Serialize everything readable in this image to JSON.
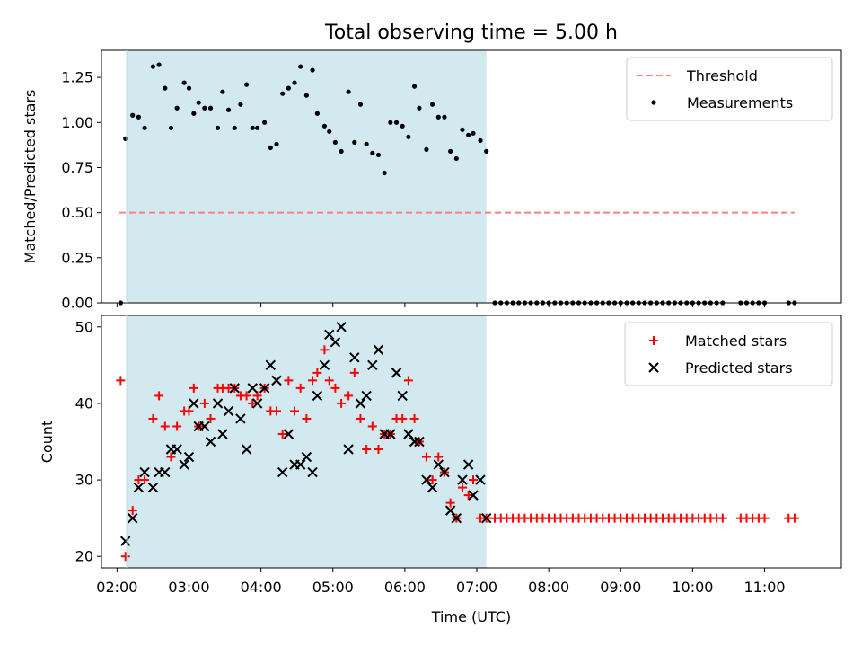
{
  "title": "Total observing time = 5.00 h",
  "chart_data": [
    {
      "type": "scatter",
      "panel": "top",
      "ylabel": "Matched/Predicted stars",
      "ylim": [
        0,
        1.4
      ],
      "yticks": [
        "0.00",
        "0.25",
        "0.50",
        "0.75",
        "1.00",
        "1.25"
      ],
      "xlim": [
        "01:47",
        "12:04"
      ],
      "highlight_span": [
        "02:08",
        "07:08"
      ],
      "highlight_color": "#d3e9f0",
      "grid": false,
      "legend_position": "top-right",
      "series": [
        {
          "name": "Threshold",
          "kind": "dashed-line",
          "color": "#ff7f7f",
          "x": [
            "02:02",
            "11:25"
          ],
          "y": [
            0.5,
            0.5
          ]
        },
        {
          "name": "Measurements",
          "kind": "dot",
          "color": "#000000",
          "x": [
            "02:03",
            "02:07",
            "02:13",
            "02:18",
            "02:23",
            "02:30",
            "02:35",
            "02:40",
            "02:45",
            "02:50",
            "02:56",
            "03:00",
            "03:04",
            "03:08",
            "03:13",
            "03:18",
            "03:24",
            "03:28",
            "03:33",
            "03:38",
            "03:43",
            "03:48",
            "03:53",
            "03:57",
            "04:03",
            "04:08",
            "04:13",
            "04:18",
            "04:23",
            "04:28",
            "04:33",
            "04:38",
            "04:43",
            "04:47",
            "04:53",
            "04:57",
            "05:02",
            "05:07",
            "05:13",
            "05:18",
            "05:23",
            "05:28",
            "05:33",
            "05:38",
            "05:43",
            "05:48",
            "05:53",
            "05:58",
            "06:03",
            "06:08",
            "06:12",
            "06:18",
            "06:23",
            "06:28",
            "06:33",
            "06:38",
            "06:43",
            "06:48",
            "06:53",
            "06:57",
            "07:03",
            "07:08",
            "07:15",
            "07:20",
            "07:25",
            "07:30",
            "07:35",
            "07:40",
            "07:45",
            "07:50",
            "07:55",
            "08:00",
            "08:05",
            "08:10",
            "08:15",
            "08:20",
            "08:25",
            "08:30",
            "08:35",
            "08:40",
            "08:45",
            "08:50",
            "08:55",
            "09:00",
            "09:05",
            "09:10",
            "09:15",
            "09:20",
            "09:25",
            "09:30",
            "09:35",
            "09:40",
            "09:45",
            "09:50",
            "09:55",
            "10:00",
            "10:05",
            "10:10",
            "10:15",
            "10:20",
            "10:25",
            "10:40",
            "10:45",
            "10:50",
            "10:55",
            "11:00",
            "11:20",
            "11:25"
          ],
          "y": [
            0.0,
            0.91,
            1.04,
            1.03,
            0.97,
            1.31,
            1.32,
            1.19,
            0.97,
            1.08,
            1.22,
            1.19,
            1.05,
            1.11,
            1.08,
            1.08,
            0.97,
            1.17,
            1.07,
            0.97,
            1.1,
            1.21,
            0.97,
            0.97,
            1.0,
            0.86,
            0.88,
            1.16,
            1.19,
            1.22,
            1.31,
            1.15,
            1.29,
            1.05,
            0.98,
            0.95,
            0.89,
            0.84,
            1.17,
            0.89,
            1.1,
            0.88,
            0.83,
            0.82,
            0.72,
            1.0,
            1.0,
            0.98,
            0.92,
            1.2,
            1.08,
            0.85,
            1.1,
            1.03,
            1.03,
            0.84,
            0.8,
            0.96,
            0.93,
            0.94,
            0.9,
            0.84,
            0,
            0,
            0,
            0,
            0,
            0,
            0,
            0,
            0,
            0,
            0,
            0,
            0,
            0,
            0,
            0,
            0,
            0,
            0,
            0,
            0,
            0,
            0,
            0,
            0,
            0,
            0,
            0,
            0,
            0,
            0,
            0,
            0,
            0,
            0,
            0,
            0,
            0,
            0,
            0,
            0,
            0,
            0,
            0,
            0,
            0
          ]
        }
      ]
    },
    {
      "type": "scatter",
      "panel": "bottom",
      "xlabel": "Time (UTC)",
      "ylabel": "Count",
      "ylim": [
        18.5,
        51.5
      ],
      "yticks": [
        "20",
        "30",
        "40",
        "50"
      ],
      "xlim": [
        "01:47",
        "12:04"
      ],
      "xticks": [
        "02:00",
        "03:00",
        "04:00",
        "05:00",
        "06:00",
        "07:00",
        "08:00",
        "09:00",
        "10:00",
        "11:00"
      ],
      "highlight_span": [
        "02:08",
        "07:08"
      ],
      "highlight_color": "#d3e9f0",
      "grid": false,
      "legend_position": "top-right",
      "series": [
        {
          "name": "Matched stars",
          "marker": "plus",
          "color": "#ff0000",
          "x": [
            "02:03",
            "02:07",
            "02:13",
            "02:18",
            "02:23",
            "02:30",
            "02:35",
            "02:40",
            "02:45",
            "02:50",
            "02:56",
            "03:00",
            "03:04",
            "03:08",
            "03:13",
            "03:18",
            "03:24",
            "03:28",
            "03:33",
            "03:38",
            "03:43",
            "03:48",
            "03:53",
            "03:57",
            "04:03",
            "04:08",
            "04:13",
            "04:18",
            "04:23",
            "04:28",
            "04:33",
            "04:38",
            "04:43",
            "04:47",
            "04:53",
            "04:57",
            "05:02",
            "05:07",
            "05:13",
            "05:18",
            "05:23",
            "05:28",
            "05:33",
            "05:38",
            "05:43",
            "05:48",
            "05:53",
            "05:58",
            "06:03",
            "06:08",
            "06:12",
            "06:18",
            "06:23",
            "06:28",
            "06:33",
            "06:38",
            "06:43",
            "06:48",
            "06:53",
            "06:57",
            "07:03",
            "07:08",
            "07:15",
            "07:20",
            "07:25",
            "07:30",
            "07:35",
            "07:40",
            "07:45",
            "07:50",
            "07:55",
            "08:00",
            "08:05",
            "08:10",
            "08:15",
            "08:20",
            "08:25",
            "08:30",
            "08:35",
            "08:40",
            "08:45",
            "08:50",
            "08:55",
            "09:00",
            "09:05",
            "09:10",
            "09:15",
            "09:20",
            "09:25",
            "09:30",
            "09:35",
            "09:40",
            "09:45",
            "09:50",
            "09:55",
            "10:00",
            "10:05",
            "10:10",
            "10:15",
            "10:20",
            "10:25",
            "10:40",
            "10:45",
            "10:50",
            "10:55",
            "11:00",
            "11:20",
            "11:25"
          ],
          "y": [
            43,
            20,
            26,
            30,
            30,
            38,
            41,
            37,
            33,
            37,
            39,
            39,
            42,
            37,
            40,
            38,
            42,
            42,
            42,
            42,
            41,
            41,
            40,
            41,
            42,
            39,
            39,
            36,
            43,
            39,
            42,
            38,
            43,
            44,
            47,
            43,
            42,
            40,
            41,
            44,
            38,
            34,
            37,
            34,
            36,
            36,
            38,
            38,
            43,
            38,
            35,
            33,
            30,
            33,
            31,
            27,
            25,
            29,
            28,
            30,
            25,
            25,
            25,
            25,
            25,
            25,
            25,
            25,
            25,
            25,
            25,
            25,
            25,
            25,
            25,
            25,
            25,
            25,
            25,
            25,
            25,
            25,
            25,
            25,
            25,
            25,
            25,
            25,
            25,
            25,
            25,
            25,
            25,
            25,
            25,
            25,
            25,
            25,
            25,
            25,
            25,
            25,
            25,
            25,
            25,
            25,
            25,
            25
          ]
        },
        {
          "name": "Predicted stars",
          "marker": "x",
          "color": "#000000",
          "x": [
            "02:03",
            "02:07",
            "02:13",
            "02:18",
            "02:23",
            "02:30",
            "02:35",
            "02:40",
            "02:45",
            "02:50",
            "02:56",
            "03:00",
            "03:04",
            "03:08",
            "03:13",
            "03:18",
            "03:24",
            "03:28",
            "03:33",
            "03:38",
            "03:43",
            "03:48",
            "03:53",
            "03:57",
            "04:03",
            "04:08",
            "04:13",
            "04:18",
            "04:23",
            "04:28",
            "04:33",
            "04:38",
            "04:43",
            "04:47",
            "04:53",
            "04:57",
            "05:02",
            "05:07",
            "05:13",
            "05:18",
            "05:23",
            "05:28",
            "05:33",
            "05:38",
            "05:43",
            "05:48",
            "05:53",
            "05:58",
            "06:03",
            "06:08",
            "06:12",
            "06:18",
            "06:23",
            "06:28",
            "06:33",
            "06:38",
            "06:43",
            "06:48",
            "06:53",
            "06:57",
            "07:03",
            "07:08"
          ],
          "y": [
            null,
            22,
            25,
            29,
            31,
            29,
            31,
            31,
            34,
            34,
            32,
            33,
            40,
            37,
            37,
            35,
            40,
            36,
            39,
            42,
            38,
            34,
            42,
            40,
            42,
            45,
            43,
            31,
            36,
            32,
            32,
            33,
            31,
            41,
            45,
            49,
            48,
            50,
            34,
            46,
            40,
            41,
            45,
            47,
            36,
            36,
            44,
            41,
            36,
            35,
            35,
            30,
            29,
            32,
            31,
            26,
            25,
            30,
            32,
            28,
            30,
            25
          ]
        }
      ]
    }
  ]
}
